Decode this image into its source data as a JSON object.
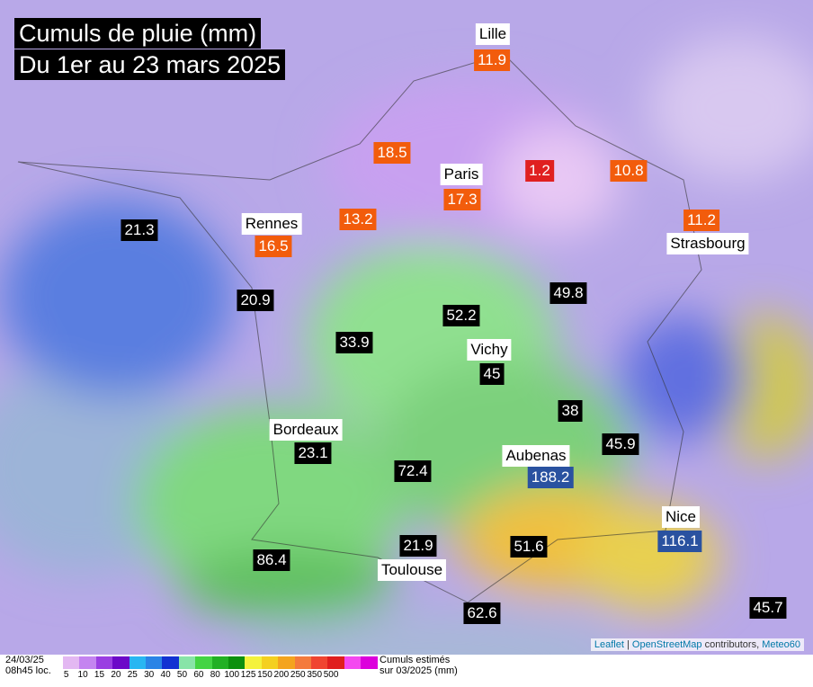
{
  "header": {
    "title": "Cumuls de pluie (mm)",
    "subtitle": "Du 1er au 23 mars 2025"
  },
  "markers": [
    {
      "city": "Lille",
      "value": 11.9,
      "bg": "#f25c0c"
    },
    {
      "value": 18.5,
      "bg": "#f25c0c"
    },
    {
      "city": "Paris",
      "value": 17.3,
      "bg": "#f25c0c"
    },
    {
      "value": 1.2,
      "bg": "#e02020"
    },
    {
      "value": 10.8,
      "bg": "#f25c0c"
    },
    {
      "city": "Strasbourg",
      "value": 11.2,
      "bg": "#f25c0c"
    },
    {
      "value": 21.3,
      "bg": "#000000"
    },
    {
      "city": "Rennes",
      "value": 16.5,
      "bg": "#f25c0c"
    },
    {
      "value": 13.2,
      "bg": "#f25c0c"
    },
    {
      "value": 20.9,
      "bg": "#000000"
    },
    {
      "value": 52.2,
      "bg": "#000000"
    },
    {
      "value": 49.8,
      "bg": "#000000"
    },
    {
      "value": 33.9,
      "bg": "#000000"
    },
    {
      "city": "Vichy",
      "value": 45,
      "bg": "#000000"
    },
    {
      "value": 38,
      "bg": "#000000"
    },
    {
      "city": "Bordeaux",
      "value": 23.1,
      "bg": "#000000"
    },
    {
      "value": 72.4,
      "bg": "#000000"
    },
    {
      "value": 45.9,
      "bg": "#000000"
    },
    {
      "city": "Aubenas",
      "value": 188.2,
      "bg": "#2a52a0"
    },
    {
      "city": "Nice",
      "value": 116.1,
      "bg": "#2a52a0"
    },
    {
      "city": "Toulouse",
      "value": 21.9,
      "bg": "#000000"
    },
    {
      "value": 51.6,
      "bg": "#000000"
    },
    {
      "value": 86.4,
      "bg": "#000000"
    },
    {
      "value": 62.6,
      "bg": "#000000"
    },
    {
      "value": 45.7,
      "bg": "#000000"
    }
  ],
  "legend": {
    "date": "24/03/25",
    "time": "08h45 loc.",
    "note1": "Cumuls estimés",
    "note2": "sur 03/2025 (mm)",
    "labels": [
      5,
      10,
      15,
      20,
      25,
      30,
      40,
      50,
      60,
      80,
      100,
      125,
      150,
      200,
      250,
      350,
      500
    ],
    "colors": [
      "#e3b8f2",
      "#c484f0",
      "#9a3ee2",
      "#6c08c8",
      "#28b6f2",
      "#2a84e6",
      "#1232d2",
      "#88e4a8",
      "#44d444",
      "#22b024",
      "#0c900e",
      "#f4f23c",
      "#f4d020",
      "#f4a41e",
      "#f47a3c",
      "#f04430",
      "#e01e1e",
      "#f448f0",
      "#dc00dc"
    ]
  },
  "attribution": {
    "leaflet": "Leaflet",
    "sep": " | ",
    "osm": "OpenStreetMap",
    "rest": " contributors, ",
    "meteo": "Meteo60"
  }
}
